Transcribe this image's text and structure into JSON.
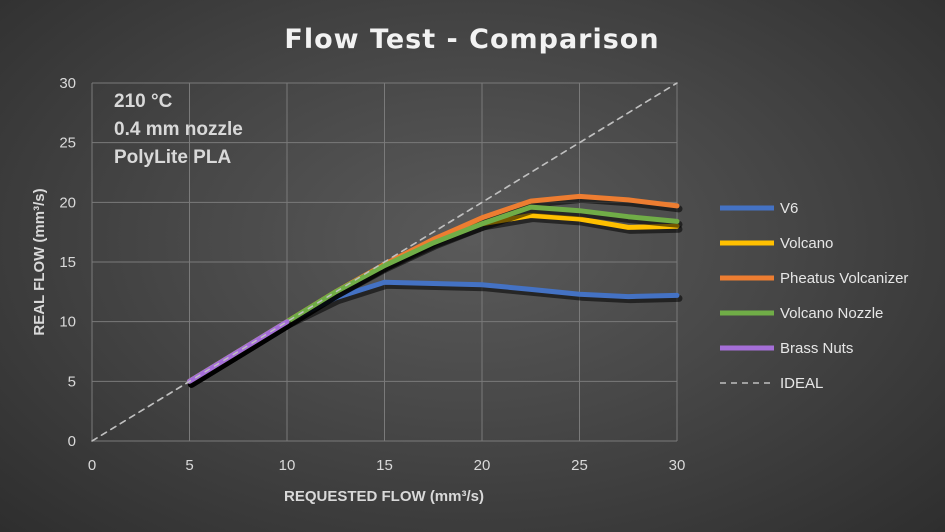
{
  "chart_data": {
    "type": "line",
    "title": "Flow Test - Comparison",
    "xlabel": "REQUESTED FLOW (mm³/s)",
    "ylabel": "REAL FLOW (mm³/s)",
    "xlim": [
      0,
      30
    ],
    "ylim": [
      0,
      30
    ],
    "xticks": [
      "0",
      "5",
      "10",
      "15",
      "20",
      "25",
      "30"
    ],
    "yticks": [
      "0",
      "5",
      "10",
      "15",
      "20",
      "25",
      "30"
    ],
    "grid": true,
    "legend_position": "right",
    "annotations": [
      "210 °C",
      "0.4 mm nozzle",
      "PolyLite PLA"
    ],
    "series": [
      {
        "name": "V6",
        "color": "#4472c4",
        "x": [
          5,
          7.5,
          10,
          12.5,
          15,
          17.5,
          20,
          22.5,
          25,
          27.5,
          30
        ],
        "y": [
          5,
          7.5,
          10,
          12,
          13.3,
          13.2,
          13.1,
          12.7,
          12.3,
          12.1,
          12.2
        ]
      },
      {
        "name": "Volcano",
        "color": "#ffc000",
        "x": [
          5,
          7.5,
          10,
          12.5,
          15,
          17.5,
          20,
          22.5,
          25,
          27.5,
          30
        ],
        "y": [
          5,
          7.5,
          10,
          12.5,
          14.8,
          16.7,
          18.2,
          18.9,
          18.6,
          17.9,
          18.0
        ]
      },
      {
        "name": "Pheatus Volcanizer",
        "color": "#ed7d31",
        "x": [
          5,
          7.5,
          10,
          12.5,
          15,
          17.5,
          20,
          22.5,
          25,
          27.5,
          30
        ],
        "y": [
          5,
          7.5,
          10,
          12.5,
          14.8,
          16.9,
          18.7,
          20.1,
          20.5,
          20.2,
          19.7
        ]
      },
      {
        "name": "Volcano Nozzle",
        "color": "#70ad47",
        "x": [
          5,
          7.5,
          10,
          12.5,
          15,
          17.5,
          20,
          22.5,
          25,
          27.5,
          30
        ],
        "y": [
          5,
          7.5,
          10,
          12.5,
          14.7,
          16.6,
          18.2,
          19.6,
          19.3,
          18.8,
          18.4
        ]
      },
      {
        "name": "Brass Nuts",
        "color": "#a56fd8",
        "x": [
          5,
          7.5,
          10
        ],
        "y": [
          5,
          7.5,
          10
        ]
      },
      {
        "name": "IDEAL",
        "color": "#bfbfbf",
        "dashed": true,
        "x": [
          0,
          30
        ],
        "y": [
          0,
          30
        ]
      }
    ]
  }
}
